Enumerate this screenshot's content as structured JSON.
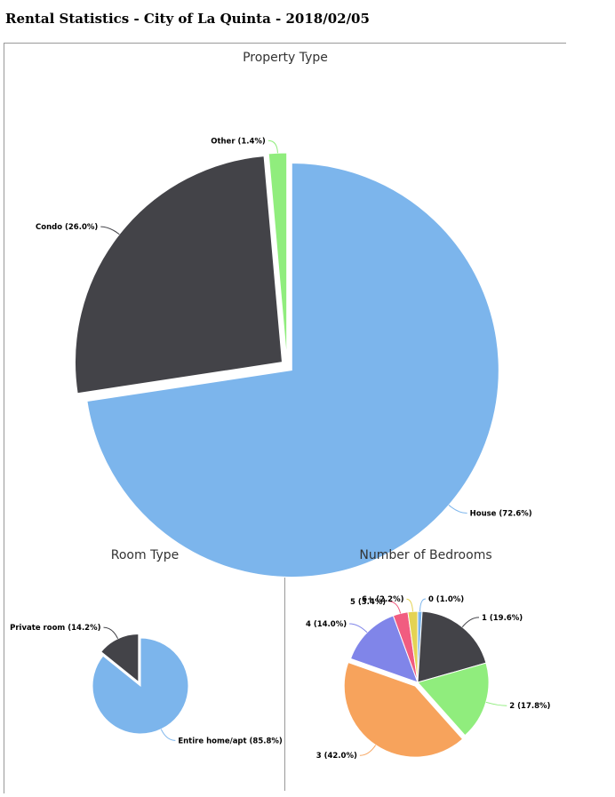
{
  "page": {
    "title": "Rental Statistics - City of La Quinta - 2018/02/05"
  },
  "chart_data": [
    {
      "id": "property-type",
      "type": "pie",
      "title": "Property Type",
      "slices": [
        {
          "label": "House (72.6%)",
          "value": 72.6,
          "color": "#7cb5ec",
          "exploded": true
        },
        {
          "label": "Condo (26.0%)",
          "value": 26.0,
          "color": "#434348",
          "exploded": true
        },
        {
          "label": "Other (1.4%)",
          "value": 1.4,
          "color": "#90ed7d",
          "exploded": true
        }
      ]
    },
    {
      "id": "room-type",
      "type": "pie",
      "title": "Room Type",
      "slices": [
        {
          "label": "Entire home/apt (85.8%)",
          "value": 85.8,
          "color": "#7cb5ec",
          "exploded": false
        },
        {
          "label": "Private room (14.2%)",
          "value": 14.2,
          "color": "#434348",
          "exploded": true
        }
      ]
    },
    {
      "id": "bedrooms",
      "type": "pie",
      "title": "Number of Bedrooms",
      "slices": [
        {
          "label": "0 (1.0%)",
          "value": 1.0,
          "color": "#7cb5ec",
          "exploded": false
        },
        {
          "label": "1 (19.6%)",
          "value": 19.6,
          "color": "#434348",
          "exploded": false
        },
        {
          "label": "2 (17.8%)",
          "value": 17.8,
          "color": "#90ed7d",
          "exploded": false
        },
        {
          "label": "3 (42.0%)",
          "value": 42.0,
          "color": "#f7a35c",
          "exploded": true
        },
        {
          "label": "4 (14.0%)",
          "value": 14.0,
          "color": "#8085e9",
          "exploded": false
        },
        {
          "label": "5 (3.4%)",
          "value": 3.4,
          "color": "#f15c80",
          "exploded": false
        },
        {
          "label": "6+ (2.2%)",
          "value": 2.2,
          "color": "#e4d354",
          "exploded": false
        }
      ]
    }
  ]
}
